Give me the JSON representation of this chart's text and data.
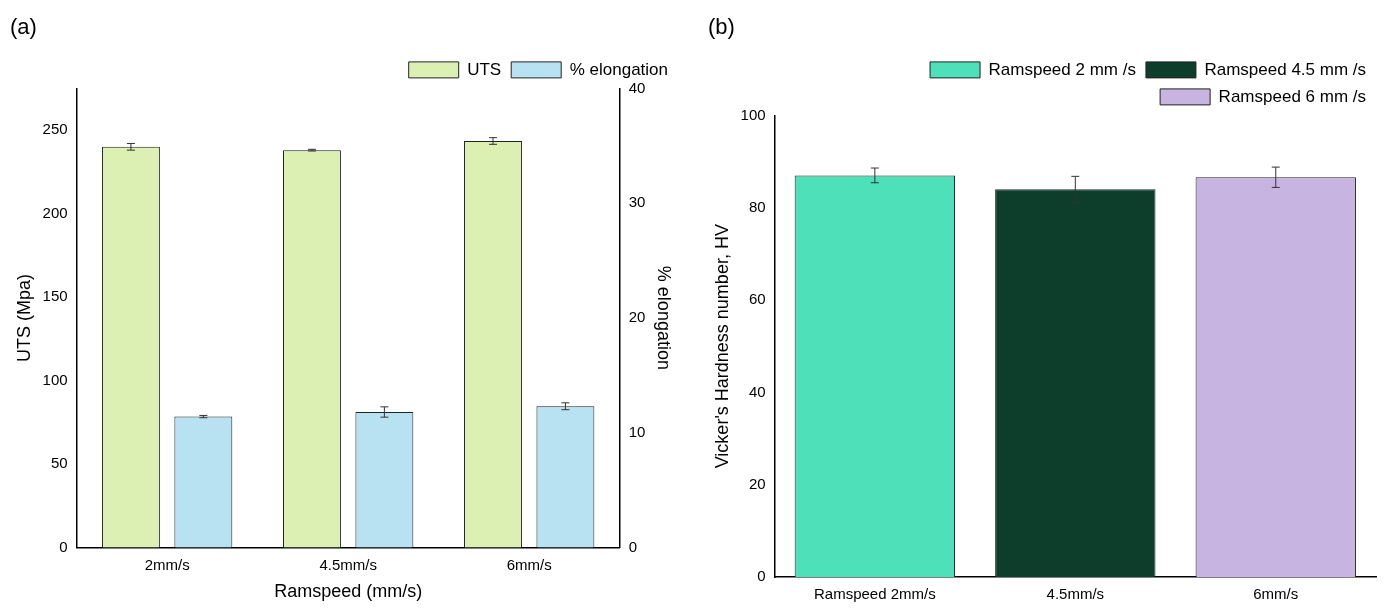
{
  "chart_data": [
    {
      "type": "bar",
      "title": "(a)",
      "xlabel": "Ramspeed (mm/s)",
      "ylabel": "UTS (Mpa)",
      "y2label": "% elongation",
      "categories": [
        "2mm/s",
        "4.5mm/s",
        "6mm/s"
      ],
      "series": [
        {
          "name": "UTS",
          "color": "#dcf0b4",
          "values": [
            240,
            238,
            243.5
          ],
          "errors": [
            2,
            0.5,
            2
          ]
        },
        {
          "name": "% elongation",
          "color": "#b8e2f2",
          "values": [
            11.4,
            11.8,
            12.3
          ],
          "errors": [
            0.1,
            0.45,
            0.3
          ],
          "axis": "y2"
        }
      ],
      "ylim": [
        0,
        275
      ],
      "yticks": [
        0,
        50,
        100,
        150,
        200,
        250
      ],
      "y2lim": [
        0,
        40
      ],
      "y2ticks": [
        0,
        10,
        20,
        30,
        40
      ],
      "legend": "top right"
    },
    {
      "type": "bar",
      "title": "(b)",
      "ylabel": "Vicker's Hardness number, HV",
      "categories": [
        "Ramspeed 2mm/s",
        "4.5mm/s",
        "6mm/s"
      ],
      "series": [
        {
          "name": "Ramspeed 2 mm /s",
          "color": "#4ee0b8",
          "values": [
            87,
            null,
            null
          ],
          "errors": [
            1.6,
            null,
            null
          ]
        },
        {
          "name": "Ramspeed 4.5 mm /s",
          "color": "#0d3d2b",
          "values": [
            null,
            84,
            null
          ],
          "errors": [
            null,
            2.8,
            null
          ]
        },
        {
          "name": "Ramspeed 6 mm /s",
          "color": "#c8b4e0",
          "values": [
            null,
            null,
            86.6
          ],
          "errors": [
            null,
            null,
            2.2
          ]
        }
      ],
      "ylim": [
        0,
        100
      ],
      "yticks": [
        0,
        20,
        40,
        60,
        80,
        100
      ],
      "legend": "top right"
    }
  ]
}
